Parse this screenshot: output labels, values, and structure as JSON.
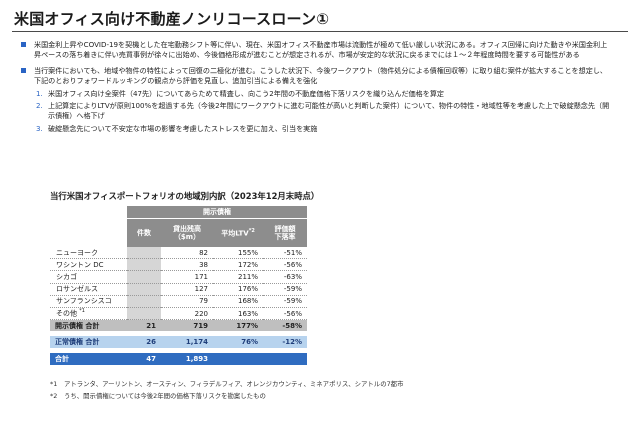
{
  "title": "米国オフィス向け不動産ノンリコースローン①",
  "bullets": [
    "米国金利上昇やCOVID-19を契機とした在宅勤務シフト等に伴い、現在、米国オフィス不動産市場は流動性が極めて低い厳しい状況にある。オフィス回帰に向けた動きや米国金利上昇ペースの落ち着きに伴い売買事例が徐々に出始め、今後価格形成が進むことが想定されるが、市場が安定的な状況に戻るまでには１～２年程度時間を要する可能性がある",
    "当行案件においても、地域や物件の特性によって回復の二極化が進む。こうした状況下、今後ワークアウト（物件処分による債権回収等）に取り組む案件が拡大することを想定し、下記のとおりフォワードルッキングの観点から評価を見直し、追加引当による備えを強化"
  ],
  "steps": [
    {
      "num": "1.",
      "text": "米国オフィス向け全案件（47先）についてあらためて精査し、向こう2年間の不動産価格下落リスクを織り込んだ価格を算定"
    },
    {
      "num": "2.",
      "text": "上記算定によりLTVが原則100%を超過する先（今後2年間にワークアウトに進む可能性が高いと判断した案件）について、物件の特性・地域性等を考慮した上で破綻懸念先（開示債権）へ格下げ"
    },
    {
      "num": "3.",
      "text": "破綻懸念先について不安定な市場の影響を考慮したストレスを更に加え、引当を実施"
    }
  ],
  "table": {
    "title": "当行米国オフィスポートフォリオの地域別内訳（2023年12月末時点）",
    "group_header": "開示債権",
    "col_count": "件数",
    "col_balance_1": "貸出残高",
    "col_balance_2": "（$m）",
    "col_ltv": "平均LTV",
    "col_ltv_mark": "*2",
    "col_rate_1": "評価額",
    "col_rate_2": "下落率",
    "rows": [
      {
        "label": "ニューヨーク",
        "mark": "",
        "balance": "82",
        "ltv": "155%",
        "rate": "-51%"
      },
      {
        "label": "ワシントン DC",
        "mark": "",
        "balance": "38",
        "ltv": "172%",
        "rate": "-56%"
      },
      {
        "label": "シカゴ",
        "mark": "",
        "balance": "171",
        "ltv": "211%",
        "rate": "-63%"
      },
      {
        "label": "ロサンゼルス",
        "mark": "",
        "balance": "127",
        "ltv": "176%",
        "rate": "-59%"
      },
      {
        "label": "サンフランシスコ",
        "mark": "",
        "balance": "79",
        "ltv": "168%",
        "rate": "-59%"
      },
      {
        "label": "その他",
        "mark": "*1",
        "balance": "220",
        "ltv": "163%",
        "rate": "-56%"
      }
    ],
    "disclosed_total": {
      "label": "開示債権 合計",
      "count": "21",
      "balance": "719",
      "ltv": "177%",
      "rate": "-58%"
    },
    "normal_total": {
      "label": "正常債権 合計",
      "count": "26",
      "balance": "1,174",
      "ltv": "76%",
      "rate": "-12%"
    },
    "grand_total": {
      "label": "合計",
      "count": "47",
      "balance": "1,893"
    }
  },
  "notes": [
    {
      "mark": "*1",
      "text": "アトランタ、アーリントン、オースティン、フィラデルフィア、オレンジカウンティ、ミネアポリス、シアトルの7都市"
    },
    {
      "mark": "*2",
      "text": "うち、開示債権については今後2年間の価格下落リスクを勘案したもの"
    }
  ]
}
